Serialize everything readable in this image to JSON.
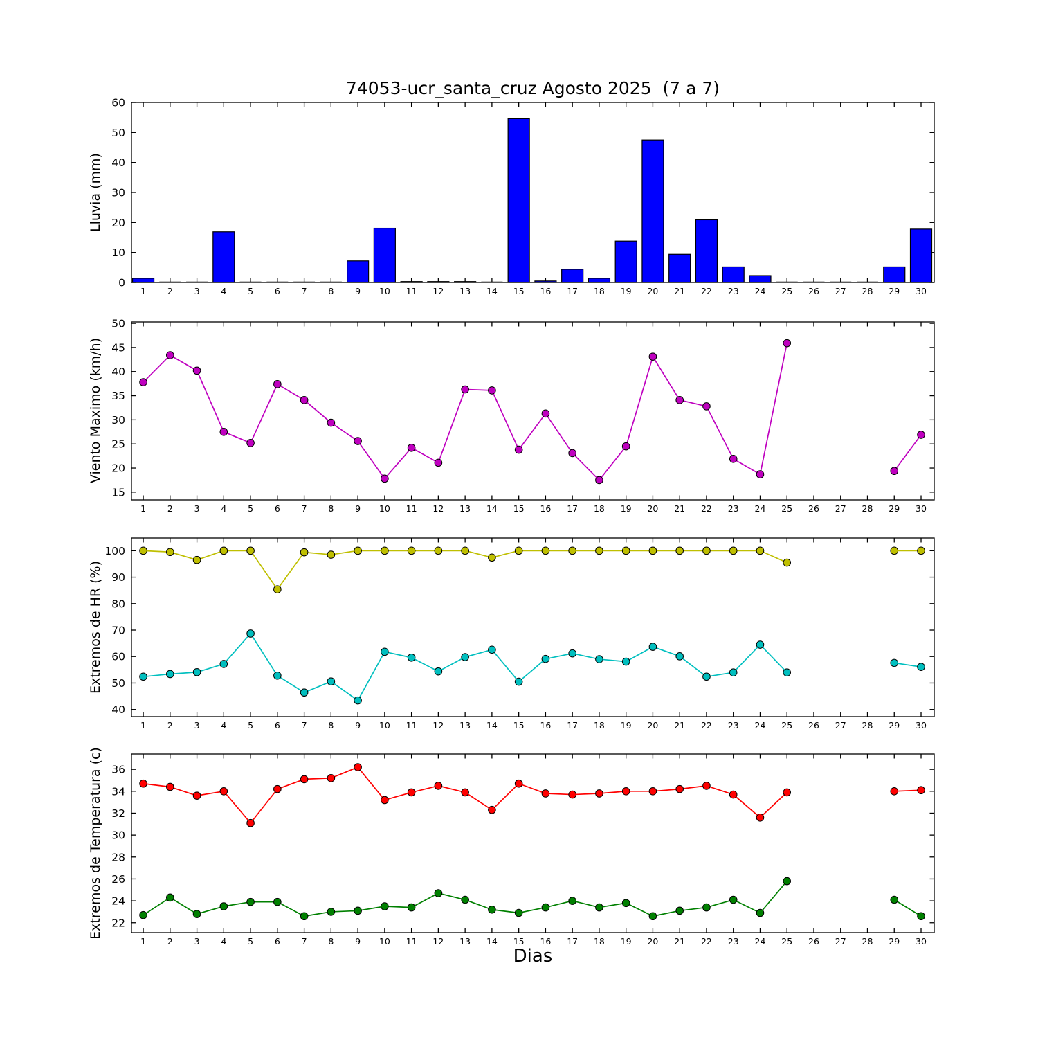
{
  "title": "74053-ucr_santa_cruz Agosto 2025  (7 a 7)",
  "xlabel": "Dias",
  "days": [
    1,
    2,
    3,
    4,
    5,
    6,
    7,
    8,
    9,
    10,
    11,
    12,
    13,
    14,
    15,
    16,
    17,
    18,
    19,
    20,
    21,
    22,
    23,
    24,
    25,
    26,
    27,
    28,
    29,
    30
  ],
  "xlim": [
    0.56,
    30.49
  ],
  "chart_data": [
    {
      "name": "lluvia",
      "type": "bar",
      "ylabel": "Lluvia (mm)",
      "ylim": [
        0,
        60
      ],
      "yticks": [
        0,
        10,
        20,
        30,
        40,
        50,
        60
      ],
      "bar_color": "#0000ff",
      "series": [
        {
          "name": "lluvia_mm",
          "color": "#0000ff",
          "values": [
            1.4,
            0,
            0,
            16.9,
            0,
            0,
            0,
            0,
            7.2,
            18.1,
            0.3,
            0.3,
            0.3,
            0,
            54.6,
            0.5,
            4.4,
            1.4,
            13.8,
            47.5,
            9.4,
            20.9,
            5.2,
            2.3,
            0,
            0,
            0,
            0,
            5.2,
            17.8
          ]
        }
      ]
    },
    {
      "name": "viento",
      "type": "line",
      "ylabel": "Viento Maximo (km/h)",
      "ylim": [
        13.4,
        50.3
      ],
      "yticks": [
        15,
        20,
        25,
        30,
        35,
        40,
        45,
        50
      ],
      "series": [
        {
          "name": "viento_maximo",
          "color": "#bf00bf",
          "marker": "circle",
          "values": [
            37.8,
            43.4,
            40.2,
            27.5,
            25.2,
            37.4,
            34.1,
            29.4,
            25.6,
            17.8,
            24.2,
            21.1,
            36.3,
            36.1,
            23.8,
            31.3,
            23.1,
            17.5,
            24.5,
            43.1,
            34.1,
            32.8,
            21.9,
            18.7,
            45.9,
            null,
            null,
            null,
            19.4,
            26.9
          ]
        }
      ]
    },
    {
      "name": "hr",
      "type": "line",
      "ylabel": "Extremos de HR (%)",
      "ylim": [
        37.3,
        104.8
      ],
      "yticks": [
        40,
        50,
        60,
        70,
        80,
        90,
        100
      ],
      "series": [
        {
          "name": "hr_maxima",
          "color": "#bfbf00",
          "marker": "circle",
          "values": [
            100,
            99.5,
            96.5,
            100,
            100,
            85.4,
            99.4,
            98.5,
            100,
            100,
            100,
            100,
            100,
            97.4,
            100,
            100,
            100,
            100,
            100,
            100,
            100,
            100,
            100,
            100,
            95.5,
            null,
            null,
            null,
            100,
            100
          ]
        },
        {
          "name": "hr_minima",
          "color": "#00bfbf",
          "marker": "circle",
          "values": [
            52.4,
            53.4,
            54.1,
            57.2,
            68.7,
            52.8,
            46.4,
            50.6,
            43.4,
            61.8,
            59.6,
            54.4,
            59.8,
            62.6,
            50.5,
            59.1,
            61.2,
            59.0,
            58.1,
            63.7,
            60.1,
            52.4,
            54.0,
            64.5,
            54.0,
            null,
            null,
            null,
            57.6,
            56.1
          ]
        }
      ]
    },
    {
      "name": "temperatura",
      "type": "line",
      "ylabel": "Extremos de Temperatura (c)",
      "ylim": [
        21.1,
        37.4
      ],
      "yticks": [
        22,
        24,
        26,
        28,
        30,
        32,
        34,
        36
      ],
      "series": [
        {
          "name": "temp_maxima",
          "color": "#ff0000",
          "marker": "circle",
          "values": [
            34.7,
            34.4,
            33.6,
            34.0,
            31.1,
            34.2,
            35.1,
            35.2,
            36.2,
            33.2,
            33.9,
            34.5,
            33.9,
            32.3,
            34.7,
            33.8,
            33.7,
            33.8,
            34.0,
            34.0,
            34.2,
            34.5,
            33.7,
            31.6,
            33.9,
            null,
            null,
            null,
            34.0,
            34.1
          ]
        },
        {
          "name": "temp_minima",
          "color": "#008000",
          "marker": "circle",
          "values": [
            22.7,
            24.3,
            22.8,
            23.5,
            23.9,
            23.9,
            22.6,
            23.0,
            23.1,
            23.5,
            23.4,
            24.7,
            24.1,
            23.2,
            22.9,
            23.4,
            24.0,
            23.4,
            23.8,
            22.6,
            23.1,
            23.4,
            24.1,
            22.9,
            25.8,
            null,
            null,
            null,
            24.1,
            22.6
          ]
        }
      ]
    }
  ]
}
